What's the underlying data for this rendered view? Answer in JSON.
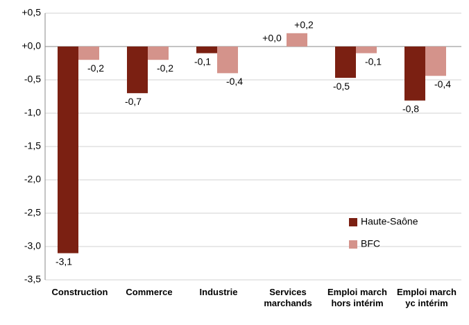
{
  "chart_data": {
    "type": "bar",
    "categories": [
      "Construction",
      "Commerce",
      "Industrie",
      "Services marchands",
      "Emploi march hors intérim",
      "Emploi march yc intérim"
    ],
    "series": [
      {
        "name": "Haute-Saône",
        "color": "#7b2012",
        "values": [
          -3.1,
          -0.7,
          -0.1,
          0.0,
          -0.47,
          -0.81
        ],
        "value_labels": [
          "-3,1",
          "-0,7",
          "-0,1",
          "+0,0",
          "-0,5",
          "-0,8"
        ]
      },
      {
        "name": "BFC",
        "color": "#d4938b",
        "values": [
          -0.2,
          -0.2,
          -0.4,
          0.2,
          -0.1,
          -0.44
        ],
        "value_labels": [
          "-0,2",
          "-0,2",
          "-0,4",
          "+0,2",
          "-0,1",
          "-0,4"
        ]
      }
    ],
    "ylim": [
      -3.5,
      0.5
    ],
    "yticks": [
      {
        "value": 0.5,
        "label": "+0,5"
      },
      {
        "value": 0,
        "label": "+0,0"
      },
      {
        "value": -0.5,
        "label": "-0,5"
      },
      {
        "value": -1,
        "label": "-1,0"
      },
      {
        "value": -1.5,
        "label": "-1,5"
      },
      {
        "value": -2,
        "label": "-2,0"
      },
      {
        "value": -2.5,
        "label": "-2,5"
      },
      {
        "value": -3,
        "label": "-3,0"
      },
      {
        "value": -3.5,
        "label": "-3,5"
      }
    ],
    "grid": true,
    "legend": "lower right"
  }
}
